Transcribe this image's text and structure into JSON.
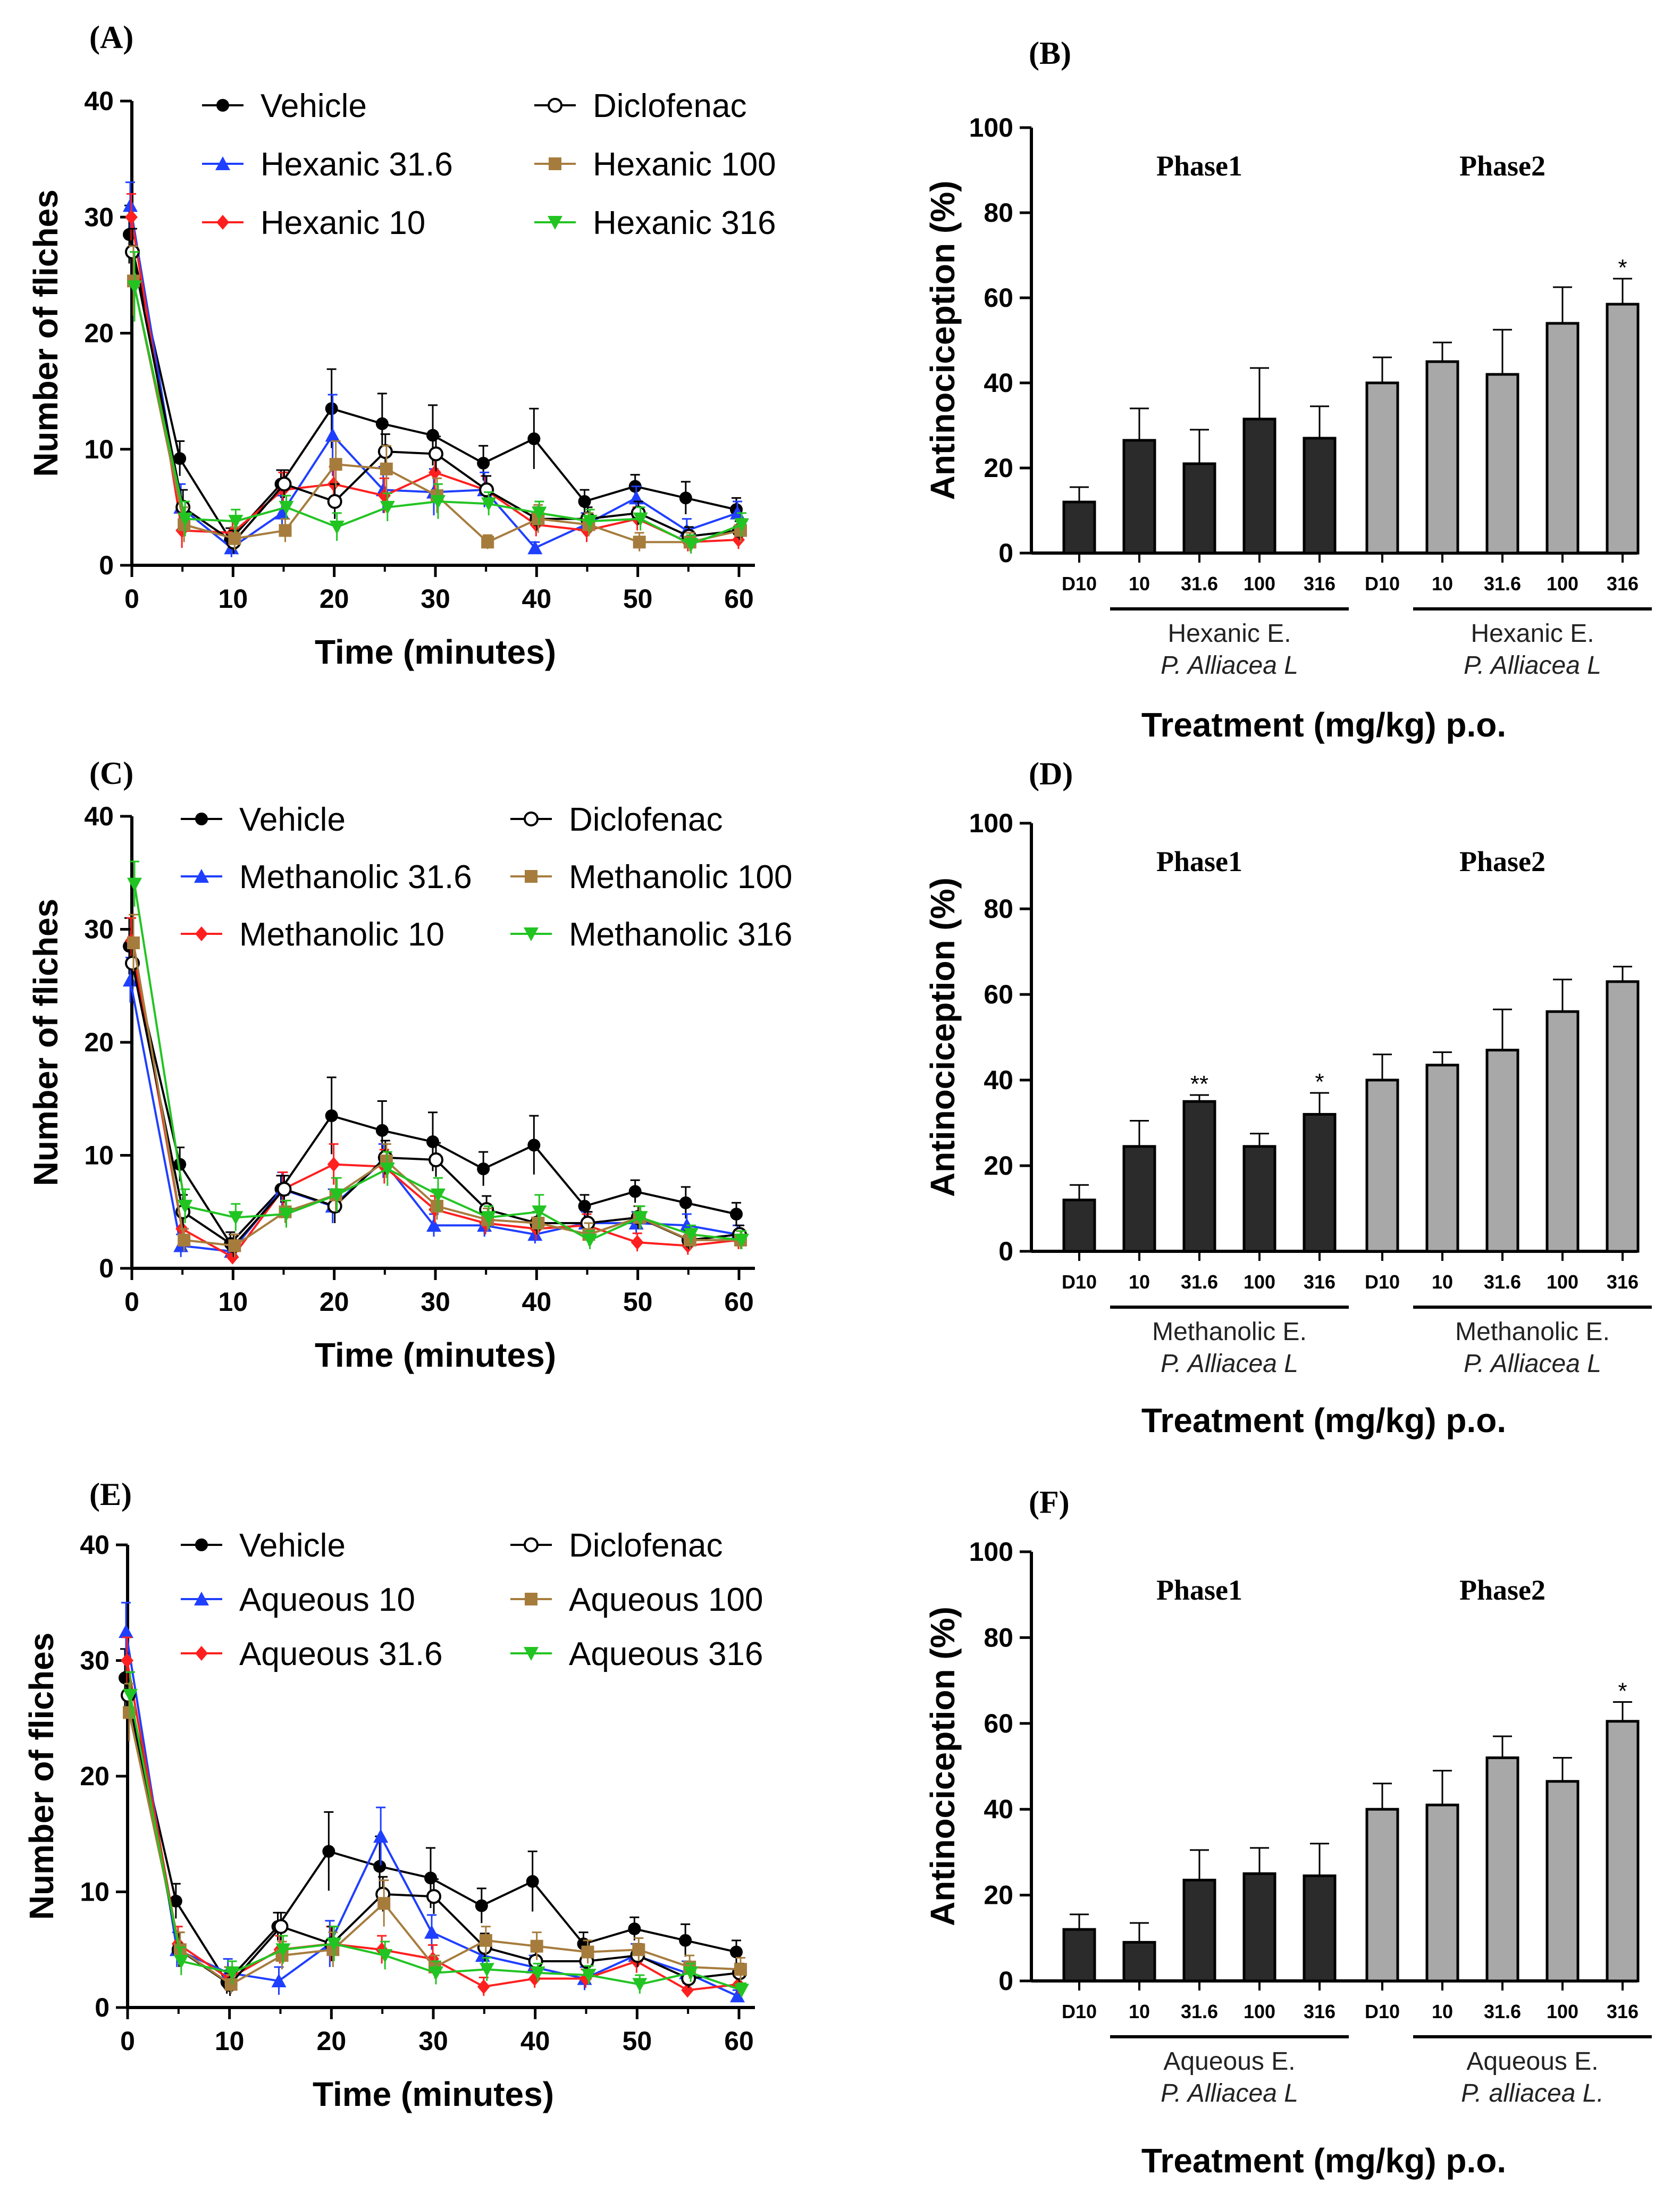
{
  "chart_data": [
    {
      "panel": "(A)",
      "type": "line",
      "xlabel": "Time (minutes)",
      "ylabel": "Number of fliches",
      "xlim": [
        0,
        60
      ],
      "ylim": [
        0,
        40
      ],
      "xticks": [
        0,
        10,
        20,
        30,
        40,
        50,
        60
      ],
      "yticks": [
        0,
        10,
        20,
        30,
        40
      ],
      "x": [
        0,
        5,
        10,
        15,
        20,
        25,
        30,
        35,
        40,
        45,
        50,
        55,
        60
      ],
      "series": [
        {
          "name": "Vehicle",
          "color": "#000000",
          "marker": "circle",
          "values": [
            28.5,
            9.2,
            2.2,
            7.0,
            13.5,
            12.2,
            11.2,
            8.8,
            10.9,
            5.5,
            6.8,
            5.8,
            4.8
          ],
          "errors": [
            2.5,
            1.5,
            1.0,
            1.2,
            3.4,
            2.6,
            2.6,
            1.5,
            2.6,
            1.0,
            1.0,
            1.4,
            1.0
          ]
        },
        {
          "name": "Hexanic 31.6",
          "color": "#1f3fff",
          "marker": "triangle",
          "values": [
            31.0,
            5.0,
            1.5,
            4.5,
            11.2,
            6.5,
            6.3,
            6.5,
            1.5,
            3.5,
            5.8,
            3.0,
            4.5
          ],
          "errors": [
            2.0,
            2.0,
            0.8,
            1.5,
            3.5,
            2.0,
            2.0,
            1.5,
            0.5,
            1.0,
            1.0,
            1.0,
            1.0
          ]
        },
        {
          "name": "Hexanic 10",
          "color": "#ff1f1f",
          "marker": "diamond",
          "values": [
            30.0,
            3.0,
            2.8,
            6.5,
            7.0,
            6.0,
            8.0,
            6.5,
            3.5,
            3.0,
            4.0,
            2.0,
            2.2
          ],
          "errors": [
            2.0,
            1.5,
            1.0,
            1.5,
            1.5,
            1.5,
            1.5,
            1.2,
            1.0,
            1.0,
            1.0,
            0.8,
            0.8
          ]
        },
        {
          "name": "Diclofenac",
          "color": "#000000",
          "marker": "open-circle",
          "values": [
            27.0,
            5.0,
            2.0,
            7.0,
            5.5,
            9.8,
            9.6,
            6.5,
            4.0,
            4.0,
            4.5,
            2.5,
            3.0
          ],
          "errors": [
            2.0,
            1.5,
            1.0,
            1.2,
            1.5,
            1.5,
            1.5,
            1.2,
            1.0,
            1.0,
            1.0,
            0.8,
            0.8
          ]
        },
        {
          "name": "Hexanic 100",
          "color": "#a67c3d",
          "marker": "square",
          "values": [
            24.5,
            3.5,
            2.3,
            3.0,
            8.7,
            8.3,
            6.0,
            2.0,
            4.0,
            3.5,
            2.0,
            2.0,
            3.0
          ],
          "errors": [
            3.0,
            1.5,
            1.0,
            1.0,
            2.0,
            2.0,
            1.5,
            0.6,
            1.2,
            1.0,
            0.8,
            0.8,
            1.0
          ]
        },
        {
          "name": "Hexanic 316",
          "color": "#22c422",
          "marker": "triangle-down",
          "values": [
            24.0,
            4.0,
            3.8,
            5.0,
            3.3,
            5.0,
            5.5,
            5.3,
            4.5,
            3.8,
            4.0,
            1.8,
            3.5
          ],
          "errors": [
            3.0,
            1.5,
            1.0,
            1.0,
            1.2,
            1.2,
            1.5,
            1.0,
            1.0,
            1.0,
            1.0,
            0.8,
            1.0
          ]
        }
      ]
    },
    {
      "panel": "(B)",
      "type": "bar",
      "ylabel": "Antinociception (%)",
      "xlabel": "Treatment (mg/kg) p.o.",
      "ylim": [
        0,
        100
      ],
      "yticks": [
        0,
        20,
        40,
        60,
        80,
        100
      ],
      "phases": [
        "Phase1",
        "Phase2"
      ],
      "group_label": "Hexanic E.",
      "species_label": "P. Alliacea L",
      "groups": [
        {
          "phase": "Phase1",
          "color": "#2b2b2b",
          "categories": [
            "D10",
            "10",
            "31.6",
            "100",
            "316"
          ],
          "values": [
            12,
            26.5,
            21,
            31.5,
            27
          ],
          "errors": [
            3.5,
            7.5,
            8.0,
            12.0,
            7.5
          ],
          "stars": [
            "",
            "",
            "",
            "",
            ""
          ]
        },
        {
          "phase": "Phase2",
          "color": "#a8a8a8",
          "categories": [
            "D10",
            "10",
            "31.6",
            "100",
            "316"
          ],
          "values": [
            40,
            45,
            42,
            54,
            58.5
          ],
          "errors": [
            6.0,
            4.5,
            10.5,
            8.5,
            6.0
          ],
          "stars": [
            "",
            "",
            "",
            "",
            "*"
          ]
        }
      ]
    },
    {
      "panel": "(C)",
      "type": "line",
      "xlabel": "Time (minutes)",
      "ylabel": "Number of fliches",
      "xlim": [
        0,
        60
      ],
      "ylim": [
        0,
        40
      ],
      "xticks": [
        0,
        10,
        20,
        30,
        40,
        50,
        60
      ],
      "yticks": [
        0,
        10,
        20,
        30,
        40
      ],
      "x": [
        0,
        5,
        10,
        15,
        20,
        25,
        30,
        35,
        40,
        45,
        50,
        55,
        60
      ],
      "series": [
        {
          "name": "Vehicle",
          "color": "#000000",
          "marker": "circle",
          "values": [
            28.5,
            9.2,
            2.2,
            7.0,
            13.5,
            12.2,
            11.2,
            8.8,
            10.9,
            5.5,
            6.8,
            5.8,
            4.8
          ],
          "errors": [
            2.5,
            1.5,
            1.0,
            1.2,
            3.4,
            2.6,
            2.6,
            1.5,
            2.6,
            1.0,
            1.0,
            1.4,
            1.0
          ]
        },
        {
          "name": "Methanolic 31.6",
          "color": "#1f3fff",
          "marker": "triangle",
          "values": [
            25.5,
            2.0,
            1.5,
            7.0,
            5.5,
            9.5,
            3.8,
            3.8,
            3.0,
            4.0,
            4.0,
            3.8,
            3.0
          ],
          "errors": [
            2.0,
            1.0,
            0.8,
            1.5,
            1.5,
            1.5,
            1.0,
            1.0,
            0.8,
            1.0,
            1.0,
            1.0,
            0.8
          ]
        },
        {
          "name": "Methanolic 10",
          "color": "#ff1f1f",
          "marker": "diamond",
          "values": [
            29.0,
            3.5,
            1.0,
            7.0,
            9.2,
            9.0,
            5.2,
            4.0,
            3.5,
            3.8,
            2.3,
            2.0,
            2.5
          ],
          "errors": [
            2.0,
            1.5,
            0.6,
            1.5,
            1.8,
            1.5,
            1.2,
            1.0,
            1.0,
            1.0,
            0.8,
            0.8,
            0.8
          ]
        },
        {
          "name": "Diclofenac",
          "color": "#000000",
          "marker": "open-circle",
          "values": [
            27.0,
            5.0,
            2.0,
            7.0,
            5.5,
            9.8,
            9.6,
            5.2,
            4.0,
            4.0,
            4.5,
            2.5,
            3.0
          ],
          "errors": [
            2.0,
            1.5,
            1.0,
            1.2,
            1.5,
            1.5,
            1.5,
            1.2,
            1.0,
            1.0,
            1.0,
            0.8,
            0.8
          ]
        },
        {
          "name": "Methanolic 100",
          "color": "#a67c3d",
          "marker": "square",
          "values": [
            28.8,
            2.5,
            2.0,
            5.0,
            6.5,
            9.5,
            5.5,
            4.3,
            4.0,
            3.0,
            4.5,
            2.5,
            2.5
          ],
          "errors": [
            2.5,
            1.0,
            1.0,
            1.0,
            1.5,
            1.5,
            1.2,
            1.0,
            1.0,
            1.0,
            1.0,
            0.8,
            0.8
          ]
        },
        {
          "name": "Methanolic 316",
          "color": "#22c422",
          "marker": "triangle-down",
          "values": [
            34.0,
            5.5,
            4.5,
            4.8,
            6.5,
            8.8,
            6.5,
            4.5,
            5.0,
            2.5,
            4.5,
            3.0,
            2.5
          ],
          "errors": [
            2.0,
            1.5,
            1.2,
            1.2,
            1.5,
            1.5,
            1.5,
            1.0,
            1.5,
            0.8,
            1.0,
            0.8,
            0.8
          ]
        }
      ]
    },
    {
      "panel": "(D)",
      "type": "bar",
      "ylabel": "Antinociception (%)",
      "xlabel": "Treatment (mg/kg) p.o.",
      "ylim": [
        0,
        100
      ],
      "yticks": [
        0,
        20,
        40,
        60,
        80,
        100
      ],
      "phases": [
        "Phase1",
        "Phase2"
      ],
      "group_label": "Methanolic E.",
      "species_label": "P. Alliacea L",
      "groups": [
        {
          "phase": "Phase1",
          "color": "#2b2b2b",
          "categories": [
            "D10",
            "10",
            "31.6",
            "100",
            "316"
          ],
          "values": [
            12,
            24.5,
            35,
            24.5,
            32
          ],
          "errors": [
            3.5,
            6.0,
            1.5,
            3.0,
            5.0
          ],
          "stars": [
            "",
            "",
            "**",
            "",
            "*"
          ]
        },
        {
          "phase": "Phase2",
          "color": "#a8a8a8",
          "categories": [
            "D10",
            "10",
            "31.6",
            "100",
            "316"
          ],
          "values": [
            40,
            43.5,
            47,
            56,
            63
          ],
          "errors": [
            6.0,
            3.0,
            9.5,
            7.5,
            3.5
          ],
          "stars": [
            "",
            "",
            "",
            "",
            ""
          ]
        }
      ]
    },
    {
      "panel": "(E)",
      "type": "line",
      "xlabel": "Time (minutes)",
      "ylabel": "Number of fliches",
      "xlim": [
        0,
        60
      ],
      "ylim": [
        0,
        40
      ],
      "xticks": [
        0,
        10,
        20,
        30,
        40,
        50,
        60
      ],
      "yticks": [
        0,
        10,
        20,
        30,
        40
      ],
      "x": [
        0,
        5,
        10,
        15,
        20,
        25,
        30,
        35,
        40,
        45,
        50,
        55,
        60
      ],
      "series": [
        {
          "name": "Vehicle",
          "color": "#000000",
          "marker": "circle",
          "values": [
            28.5,
            9.2,
            2.2,
            7.0,
            13.5,
            12.2,
            11.2,
            8.8,
            10.9,
            5.5,
            6.8,
            5.8,
            4.8
          ],
          "errors": [
            2.5,
            1.5,
            1.0,
            1.2,
            3.4,
            2.6,
            2.6,
            1.5,
            2.6,
            1.0,
            1.0,
            1.4,
            1.0
          ]
        },
        {
          "name": "Aqueous 10",
          "color": "#1f3fff",
          "marker": "triangle",
          "values": [
            32.5,
            5.0,
            3.0,
            2.3,
            5.5,
            14.8,
            6.5,
            4.5,
            3.5,
            2.5,
            4.5,
            3.0,
            1.0
          ],
          "errors": [
            2.5,
            1.5,
            1.2,
            1.2,
            2.0,
            2.5,
            1.5,
            1.2,
            1.0,
            1.0,
            1.0,
            1.0,
            0.5
          ]
        },
        {
          "name": "Aqueous 31.6",
          "color": "#ff1f1f",
          "marker": "diamond",
          "values": [
            30.0,
            5.5,
            2.5,
            5.0,
            5.5,
            5.0,
            4.2,
            1.8,
            2.5,
            2.5,
            4.0,
            1.5,
            2.0
          ],
          "errors": [
            2.0,
            1.5,
            1.0,
            1.2,
            1.5,
            1.2,
            1.2,
            0.8,
            0.8,
            0.8,
            1.0,
            0.6,
            0.8
          ]
        },
        {
          "name": "Diclofenac",
          "color": "#000000",
          "marker": "open-circle",
          "values": [
            27.0,
            5.0,
            2.0,
            7.0,
            5.5,
            9.8,
            9.6,
            5.2,
            4.0,
            4.0,
            4.5,
            2.5,
            3.0
          ],
          "errors": [
            2.0,
            1.5,
            1.0,
            1.2,
            1.5,
            1.5,
            1.5,
            1.2,
            1.0,
            1.0,
            1.0,
            0.8,
            0.8
          ]
        },
        {
          "name": "Aqueous 100",
          "color": "#a67c3d",
          "marker": "square",
          "values": [
            25.5,
            5.0,
            2.0,
            4.5,
            5.0,
            9.0,
            3.5,
            5.8,
            5.3,
            4.8,
            5.0,
            3.5,
            3.3
          ],
          "errors": [
            2.5,
            1.5,
            0.8,
            1.2,
            1.5,
            2.0,
            1.0,
            1.2,
            1.2,
            1.0,
            1.0,
            1.0,
            1.0
          ]
        },
        {
          "name": "Aqueous 316",
          "color": "#22c422",
          "marker": "triangle-down",
          "values": [
            27.0,
            4.0,
            3.0,
            5.0,
            5.5,
            4.5,
            3.0,
            3.3,
            3.0,
            2.8,
            2.0,
            3.0,
            1.5
          ],
          "errors": [
            2.0,
            1.2,
            1.0,
            1.2,
            1.5,
            1.2,
            1.0,
            1.0,
            0.8,
            0.8,
            0.8,
            0.8,
            0.6
          ]
        }
      ]
    },
    {
      "panel": "(F)",
      "type": "bar",
      "ylabel": "Antinociception (%)",
      "xlabel": "Treatment (mg/kg) p.o.",
      "ylim": [
        0,
        100
      ],
      "yticks": [
        0,
        20,
        40,
        60,
        80,
        100
      ],
      "phases": [
        "Phase1",
        "Phase2"
      ],
      "group_label": "Aqueous E.",
      "species_label": "P. Alliacea L",
      "species_label_2": "P. alliacea L.",
      "groups": [
        {
          "phase": "Phase1",
          "color": "#2b2b2b",
          "categories": [
            "D10",
            "10",
            "31.6",
            "100",
            "316"
          ],
          "values": [
            12,
            9,
            23.5,
            25,
            24.5
          ],
          "errors": [
            3.5,
            4.5,
            7.0,
            6.0,
            7.5
          ],
          "stars": [
            "",
            "",
            "",
            "",
            ""
          ]
        },
        {
          "phase": "Phase2",
          "color": "#a8a8a8",
          "categories": [
            "D10",
            "10",
            "31.6",
            "100",
            "316"
          ],
          "values": [
            40,
            41,
            52,
            46.5,
            60.5
          ],
          "errors": [
            6.0,
            8.0,
            5.0,
            5.5,
            4.5
          ],
          "stars": [
            "",
            "",
            "",
            "",
            "*"
          ]
        }
      ]
    }
  ]
}
